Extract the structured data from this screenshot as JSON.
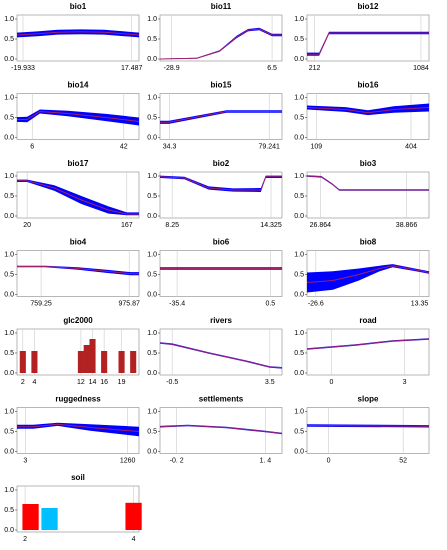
{
  "chart_data": [
    {
      "type": "line",
      "title": "bio1",
      "x": [
        -22,
        -15,
        -8,
        0,
        8,
        15,
        20
      ],
      "values": [
        0.6,
        0.63,
        0.67,
        0.68,
        0.67,
        0.63,
        0.6
      ],
      "band_lower": [
        0.54,
        0.57,
        0.61,
        0.62,
        0.61,
        0.57,
        0.54
      ],
      "band_upper": [
        0.66,
        0.69,
        0.73,
        0.74,
        0.73,
        0.69,
        0.66
      ],
      "color": "#a0206a",
      "band_color": "#0000ff",
      "xlim": [
        -22,
        20
      ],
      "xticks": [
        -19.933,
        17.487
      ],
      "ylim": [
        -0.05,
        1.1
      ],
      "yticks": [
        {
          "value": 0,
          "label": "0.0"
        },
        {
          "value": 0.5,
          "label": "0.5"
        },
        {
          "value": 1,
          "label": "1.0"
        }
      ]
    },
    {
      "type": "line",
      "title": "bio11",
      "x": [
        -33,
        -20,
        -12,
        -6,
        -2,
        2,
        6.5,
        10
      ],
      "values": [
        0,
        0.02,
        0.2,
        0.55,
        0.72,
        0.75,
        0.6,
        0.6
      ],
      "band_lower": [
        0,
        0.01,
        0.18,
        0.52,
        0.69,
        0.72,
        0.57,
        0.57
      ],
      "band_upper": [
        0.01,
        0.03,
        0.22,
        0.58,
        0.75,
        0.78,
        0.63,
        0.63
      ],
      "color": "#a0206a",
      "band_color": "#0000ff",
      "xlim": [
        -33,
        10
      ],
      "xticks": [
        -28.9,
        6.5
      ],
      "ylim": [
        -0.05,
        1.1
      ],
      "yticks": [
        {
          "value": 0,
          "label": "0.0"
        },
        {
          "value": 0.5,
          "label": "0.5"
        },
        {
          "value": 1,
          "label": "1.0"
        }
      ]
    },
    {
      "type": "line",
      "title": "bio12",
      "x": [
        150,
        250,
        330,
        500,
        800,
        1150
      ],
      "values": [
        0.12,
        0.12,
        0.65,
        0.65,
        0.65,
        0.65
      ],
      "band_lower": [
        0.08,
        0.08,
        0.62,
        0.62,
        0.62,
        0.62
      ],
      "band_upper": [
        0.16,
        0.16,
        0.68,
        0.68,
        0.68,
        0.68
      ],
      "color": "#a0206a",
      "band_color": "#0000ff",
      "xlim": [
        150,
        1150
      ],
      "xticks": [
        212,
        1084
      ],
      "ylim": [
        -0.05,
        1.1
      ],
      "yticks": [
        {
          "value": 0,
          "label": "0.0"
        },
        {
          "value": 0.5,
          "label": "0.5"
        },
        {
          "value": 1,
          "label": "1.0"
        }
      ]
    },
    {
      "type": "line",
      "title": "bio14",
      "x": [
        0,
        4,
        9,
        20,
        35,
        48
      ],
      "values": [
        0.45,
        0.45,
        0.65,
        0.6,
        0.5,
        0.4
      ],
      "band_lower": [
        0.39,
        0.38,
        0.6,
        0.53,
        0.41,
        0.3
      ],
      "band_upper": [
        0.51,
        0.52,
        0.7,
        0.67,
        0.59,
        0.5
      ],
      "color": "#a0206a",
      "band_color": "#0000ff",
      "xlim": [
        0,
        48
      ],
      "xticks": [
        6,
        42
      ],
      "ylim": [
        -0.05,
        1.1
      ],
      "yticks": [
        {
          "value": 0,
          "label": "0.0"
        },
        {
          "value": 0.5,
          "label": "0.5"
        },
        {
          "value": 1,
          "label": "1.0"
        }
      ]
    },
    {
      "type": "line",
      "title": "bio15",
      "x": [
        30,
        34,
        60,
        85
      ],
      "values": [
        0.38,
        0.38,
        0.65,
        0.65
      ],
      "band_lower": [
        0.34,
        0.34,
        0.62,
        0.62
      ],
      "band_upper": [
        0.42,
        0.42,
        0.68,
        0.68
      ],
      "color": "#a0206a",
      "band_color": "#0000ff",
      "xlim": [
        30,
        85
      ],
      "xticks": [
        34.3,
        79.241
      ],
      "ylim": [
        -0.05,
        1.1
      ],
      "yticks": [
        {
          "value": 0,
          "label": "0.0"
        },
        {
          "value": 0.5,
          "label": "0.5"
        },
        {
          "value": 1,
          "label": "1.0"
        }
      ]
    },
    {
      "type": "line",
      "title": "bio16",
      "x": [
        80,
        200,
        270,
        350,
        460
      ],
      "values": [
        0.75,
        0.7,
        0.62,
        0.7,
        0.75
      ],
      "band_lower": [
        0.7,
        0.64,
        0.56,
        0.62,
        0.65
      ],
      "band_upper": [
        0.8,
        0.76,
        0.68,
        0.78,
        0.85
      ],
      "color": "#a0206a",
      "band_color": "#0000ff",
      "xlim": [
        80,
        460
      ],
      "xticks": [
        109,
        404
      ],
      "ylim": [
        -0.05,
        1.1
      ],
      "yticks": [
        {
          "value": 0,
          "label": "0.0"
        },
        {
          "value": 0.5,
          "label": "0.5"
        },
        {
          "value": 1,
          "label": "1.0"
        }
      ]
    },
    {
      "type": "line",
      "title": "bio17",
      "x": [
        5,
        20,
        60,
        100,
        140,
        167,
        185
      ],
      "values": [
        0.88,
        0.88,
        0.7,
        0.4,
        0.15,
        0.05,
        0.05
      ],
      "band_lower": [
        0.85,
        0.85,
        0.63,
        0.3,
        0.06,
        0.02,
        0.02
      ],
      "band_upper": [
        0.91,
        0.91,
        0.77,
        0.5,
        0.24,
        0.09,
        0.09
      ],
      "color": "#a0206a",
      "band_color": "#0000ff",
      "xlim": [
        5,
        185
      ],
      "xticks": [
        20,
        167
      ],
      "ylim": [
        -0.05,
        1.1
      ],
      "yticks": [
        {
          "value": 0,
          "label": "0.0"
        },
        {
          "value": 0.5,
          "label": "0.5"
        },
        {
          "value": 1,
          "label": "1.0"
        }
      ]
    },
    {
      "type": "line",
      "title": "bio2",
      "x": [
        7.5,
        9,
        10.5,
        12,
        13.7,
        14,
        15
      ],
      "values": [
        0.98,
        0.95,
        0.7,
        0.65,
        0.65,
        0.98,
        0.98
      ],
      "band_lower": [
        0.95,
        0.92,
        0.66,
        0.61,
        0.6,
        0.95,
        0.95
      ],
      "band_upper": [
        1.01,
        0.98,
        0.74,
        0.69,
        0.7,
        1.01,
        1.01
      ],
      "color": "#a0206a",
      "band_color": "#0000ff",
      "xlim": [
        7.5,
        15
      ],
      "xticks": [
        8.25,
        14.325
      ],
      "ylim": [
        -0.05,
        1.1
      ],
      "yticks": [
        {
          "value": 0,
          "label": "0.0"
        },
        {
          "value": 0.5,
          "label": "0.5"
        },
        {
          "value": 1,
          "label": "1.0"
        }
      ]
    },
    {
      "type": "line",
      "title": "bio3",
      "x": [
        25,
        27,
        28.5,
        29.5,
        42
      ],
      "values": [
        1,
        0.98,
        0.8,
        0.65,
        0.65
      ],
      "band_lower": [
        0.98,
        0.96,
        0.78,
        0.63,
        0.63
      ],
      "band_upper": [
        1.02,
        1,
        0.82,
        0.67,
        0.67
      ],
      "color": "#a0206a",
      "band_color": "#0000ff",
      "xlim": [
        25,
        42
      ],
      "xticks": [
        26.864,
        38.866
      ],
      "ylim": [
        -0.05,
        1.1
      ],
      "yticks": [
        {
          "value": 0,
          "label": "0.0"
        },
        {
          "value": 0.5,
          "label": "0.5"
        },
        {
          "value": 1,
          "label": "1.0"
        }
      ]
    },
    {
      "type": "line",
      "title": "bio4",
      "x": [
        700,
        770,
        850,
        920,
        980,
        1000
      ],
      "values": [
        0.7,
        0.7,
        0.65,
        0.58,
        0.52,
        0.52
      ],
      "band_lower": [
        0.68,
        0.68,
        0.62,
        0.54,
        0.48,
        0.48
      ],
      "band_upper": [
        0.72,
        0.72,
        0.68,
        0.62,
        0.56,
        0.56
      ],
      "color": "#a0206a",
      "band_color": "#0000ff",
      "xlim": [
        700,
        1000
      ],
      "xticks": [
        759.25,
        975.87
      ],
      "ylim": [
        -0.05,
        1.1
      ],
      "yticks": [
        {
          "value": 0,
          "label": "0.0"
        },
        {
          "value": 0.5,
          "label": "0.5"
        },
        {
          "value": 1,
          "label": "1.0"
        }
      ]
    },
    {
      "type": "line",
      "title": "bio6",
      "x": [
        -42,
        5
      ],
      "values": [
        0.65,
        0.65
      ],
      "band_lower": [
        0.62,
        0.62
      ],
      "band_upper": [
        0.68,
        0.68
      ],
      "color": "#a0206a",
      "band_color": "#0000ff",
      "xlim": [
        -42,
        5
      ],
      "xticks": [
        -35.4,
        0.5
      ],
      "ylim": [
        -0.05,
        1.1
      ],
      "yticks": [
        {
          "value": 0,
          "label": "0.0"
        },
        {
          "value": 0.5,
          "label": "0.5"
        },
        {
          "value": 1,
          "label": "1.0"
        }
      ]
    },
    {
      "type": "line",
      "title": "bio8",
      "x": [
        -30,
        -20,
        -10,
        -2,
        3,
        13,
        17
      ],
      "values": [
        0.3,
        0.35,
        0.5,
        0.65,
        0.72,
        0.6,
        0.55
      ],
      "band_lower": [
        0.05,
        0.12,
        0.35,
        0.58,
        0.68,
        0.57,
        0.52
      ],
      "band_upper": [
        0.55,
        0.58,
        0.65,
        0.72,
        0.76,
        0.63,
        0.58
      ],
      "color": "#a0206a",
      "band_color": "#0000ff",
      "xlim": [
        -30,
        17
      ],
      "xticks": [
        -26.6,
        13.35
      ],
      "ylim": [
        -0.05,
        1.1
      ],
      "yticks": [
        {
          "value": 0,
          "label": "0.0"
        },
        {
          "value": 0.5,
          "label": "0.5"
        },
        {
          "value": 1,
          "label": "1.0"
        }
      ]
    },
    {
      "type": "bar",
      "title": "glc2000",
      "x": [
        2,
        4,
        12,
        13,
        14,
        16,
        19,
        21
      ],
      "values": [
        0.55,
        0.55,
        0.55,
        0.7,
        0.85,
        0.55,
        0.55,
        0.55
      ],
      "colors": [
        "#b22222",
        "#b22222",
        "#b22222",
        "#b22222",
        "#b22222",
        "#b22222",
        "#b22222",
        "#b22222"
      ],
      "xlim": [
        1,
        22
      ],
      "xticks": [
        2,
        4,
        12,
        14,
        16,
        19
      ],
      "ylim": [
        -0.05,
        1.1
      ],
      "yticks": [
        {
          "value": 0,
          "label": "0.0"
        },
        {
          "value": 0.5,
          "label": "0.5"
        },
        {
          "value": 1,
          "label": "1.0"
        }
      ]
    },
    {
      "type": "line",
      "title": "rivers",
      "x": [
        -1,
        -0.5,
        1,
        2.5,
        3.5,
        4
      ],
      "values": [
        0.75,
        0.72,
        0.5,
        0.3,
        0.15,
        0.13
      ],
      "band_lower": [
        0.73,
        0.7,
        0.48,
        0.28,
        0.13,
        0.11
      ],
      "band_upper": [
        0.77,
        0.74,
        0.52,
        0.32,
        0.17,
        0.15
      ],
      "color": "#a0206a",
      "band_color": "#0000ff",
      "xlim": [
        -1,
        4
      ],
      "xticks": [
        -0.5,
        3.5
      ],
      "ylim": [
        -0.05,
        1.1
      ],
      "yticks": [
        {
          "value": 0,
          "label": "0.0"
        },
        {
          "value": 0.5,
          "label": "0.5"
        },
        {
          "value": 1,
          "label": "1.0"
        }
      ]
    },
    {
      "type": "line",
      "title": "road",
      "x": [
        -1,
        1,
        2.5,
        4
      ],
      "values": [
        0.6,
        0.7,
        0.8,
        0.85
      ],
      "band_lower": [
        0.58,
        0.68,
        0.78,
        0.83
      ],
      "band_upper": [
        0.62,
        0.72,
        0.82,
        0.87
      ],
      "color": "#a0206a",
      "band_color": "#0000ff",
      "xlim": [
        -1,
        4
      ],
      "xticks": [
        0,
        3
      ],
      "ylim": [
        -0.05,
        1.1
      ],
      "yticks": [
        {
          "value": 0,
          "label": "0.0"
        },
        {
          "value": 0.5,
          "label": "0.5"
        },
        {
          "value": 1,
          "label": "1.0"
        }
      ]
    },
    {
      "type": "line",
      "title": "ruggedness",
      "x": [
        -100,
        100,
        400,
        800,
        1400
      ],
      "values": [
        0.62,
        0.62,
        0.68,
        0.6,
        0.5
      ],
      "band_lower": [
        0.57,
        0.57,
        0.64,
        0.52,
        0.38
      ],
      "band_upper": [
        0.67,
        0.67,
        0.72,
        0.68,
        0.62
      ],
      "color": "#a0206a",
      "band_color": "#0000ff",
      "xlim": [
        -100,
        1400
      ],
      "xticks": [
        3,
        1260
      ],
      "ylim": [
        -0.05,
        1.1
      ],
      "yticks": [
        {
          "value": 0,
          "label": "0.0"
        },
        {
          "value": 0.5,
          "label": "0.5"
        },
        {
          "value": 1,
          "label": "1.0"
        }
      ]
    },
    {
      "type": "line",
      "title": "settlements",
      "x": [
        -0.5,
        0,
        0.7,
        1.4,
        1.7
      ],
      "values": [
        0.62,
        0.65,
        0.6,
        0.5,
        0.45
      ],
      "band_lower": [
        0.6,
        0.63,
        0.58,
        0.48,
        0.43
      ],
      "band_upper": [
        0.64,
        0.67,
        0.62,
        0.52,
        0.47
      ],
      "color": "#a0206a",
      "band_color": "#0000ff",
      "xlim": [
        -0.5,
        1.7
      ],
      "xticks": [
        {
          "value": -0.2,
          "label": "-0. 2"
        },
        {
          "value": 1.4,
          "label": "1. 4"
        }
      ],
      "ylim": [
        -0.05,
        1.1
      ],
      "yticks": [
        {
          "value": 0,
          "label": "0.0"
        },
        {
          "value": 0.5,
          "label": "0.5"
        },
        {
          "value": 1,
          "label": "1.0"
        }
      ]
    },
    {
      "type": "line",
      "title": "slope",
      "x": [
        -15,
        70
      ],
      "values": [
        0.65,
        0.63
      ],
      "band_lower": [
        0.62,
        0.6
      ],
      "band_upper": [
        0.68,
        0.66
      ],
      "color": "#a0206a",
      "band_color": "#0000ff",
      "xlim": [
        -15,
        70
      ],
      "xticks": [
        0,
        52
      ],
      "ylim": [
        -0.05,
        1.1
      ],
      "yticks": [
        {
          "value": 0,
          "label": "0.0"
        },
        {
          "value": 0.5,
          "label": "0.5"
        },
        {
          "value": 1,
          "label": "1.0"
        }
      ]
    },
    {
      "type": "bar",
      "title": "soil",
      "x": [
        2.1,
        2.45,
        4
      ],
      "values": [
        0.65,
        0.55,
        0.68
      ],
      "colors": [
        "#ff0000",
        "#00bfff",
        "#ff0000"
      ],
      "xlim": [
        1.85,
        4.1
      ],
      "xticks": [
        2,
        4
      ],
      "ylim": [
        -0.05,
        1.1
      ],
      "yticks": [
        {
          "value": 0,
          "label": "0.0"
        },
        {
          "value": 0.5,
          "label": "0.5"
        },
        {
          "value": 1,
          "label": "1.0"
        }
      ]
    }
  ]
}
